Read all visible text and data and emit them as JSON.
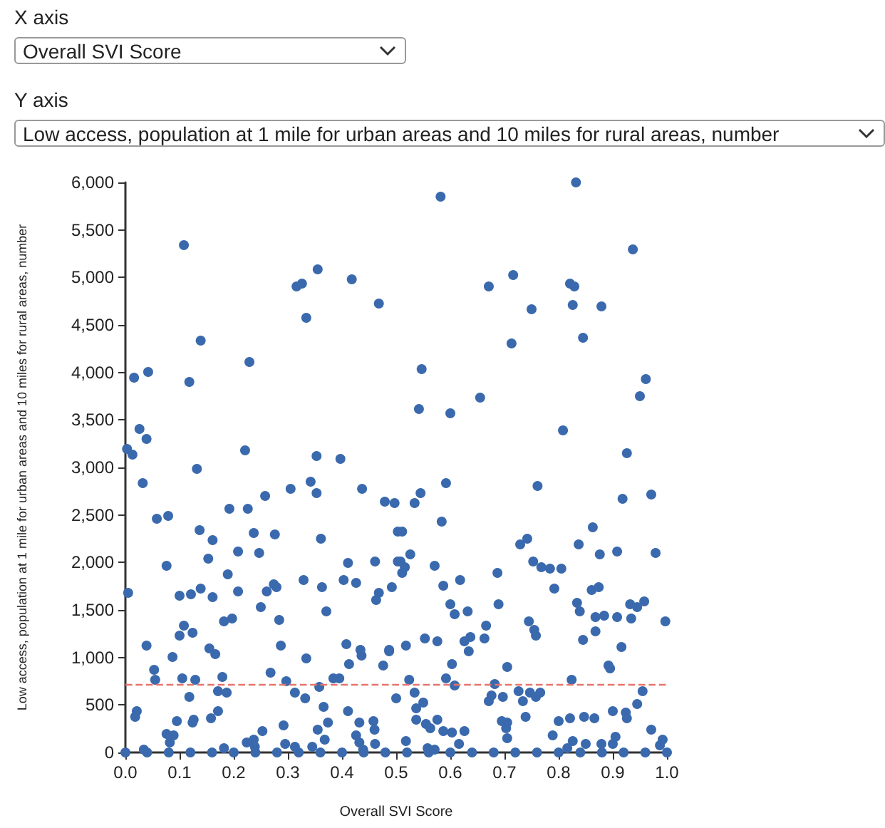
{
  "chart_data": {
    "type": "scatter",
    "xlabel": "Overall SVI Score",
    "ylabel": "Low access, population at 1 mile for urban areas and 10 miles for rural areas, number",
    "annotations": [
      "X axis",
      "Y axis"
    ],
    "xlim": [
      0,
      1
    ],
    "xticks": [
      {
        "value": 0,
        "label": "0.0"
      },
      0.1,
      0.2,
      0.3,
      0.4,
      0.5,
      0.6,
      0.7,
      0.8,
      0.9,
      {
        "value": 1,
        "label": "1.0"
      }
    ],
    "ylim": [
      0,
      6000
    ],
    "yticks": [
      0,
      500,
      {
        "value": 1000,
        "label": "1,000"
      },
      {
        "value": 1500,
        "label": "1,500"
      },
      {
        "value": 2000,
        "label": "2,000"
      },
      {
        "value": 2500,
        "label": "2,500"
      },
      {
        "value": 3000,
        "label": "3,000"
      },
      {
        "value": 3500,
        "label": "3,500"
      },
      {
        "value": 4000,
        "label": "4,000"
      },
      {
        "value": 4500,
        "label": "4,500"
      },
      {
        "value": 5000,
        "label": "5,000"
      },
      {
        "value": 5500,
        "label": "5,500"
      },
      {
        "value": 6000,
        "label": "6,000"
      }
    ],
    "grid": false,
    "marker": "circle",
    "ref_lines": [
      {
        "axis": "y",
        "value": 720,
        "color": "#e8736c",
        "line_style": "dashed"
      }
    ],
    "series": [
      {
        "color": "#3a6aad",
        "x": [
          0.108,
          0.139,
          0.229,
          0.016,
          0.042,
          0.118,
          0.026,
          0.039,
          0.003,
          0.013,
          0.221,
          0.353,
          0.397,
          0.316,
          0.326,
          0.355,
          0.418,
          0.468,
          0.334,
          0.832,
          0.582,
          0.937,
          0.716,
          0.671,
          0.821,
          0.829,
          0.75,
          0.826,
          0.879,
          0.713,
          0.845,
          0.547,
          0.961,
          0.95,
          0.542,
          0.6,
          0.655,
          0.808,
          0.926,
          0.132,
          0.032,
          0.058,
          0.079,
          0.137,
          0.161,
          0.192,
          0.226,
          0.258,
          0.237,
          0.208,
          0.247,
          0.276,
          0.305,
          0.342,
          0.353,
          0.361,
          0.437,
          0.479,
          0.497,
          0.503,
          0.076,
          0.005,
          0.153,
          0.189,
          0.208,
          0.1,
          0.121,
          0.139,
          0.161,
          0.261,
          0.25,
          0.274,
          0.279,
          0.329,
          0.363,
          0.371,
          0.403,
          0.411,
          0.426,
          0.461,
          0.503,
          0.468,
          0.463,
          0.492,
          0.182,
          0.197,
          0.284,
          0.108,
          0.1,
          0.124,
          0.039,
          0.155,
          0.166,
          0.087,
          0.287,
          0.334,
          0.408,
          0.434,
          0.436,
          0.413,
          0.476,
          0.487,
          0.053,
          0.055,
          0.105,
          0.129,
          0.179,
          0.268,
          0.297,
          0.384,
          0.395,
          0.358,
          0.171,
          0.187,
          0.118,
          0.313,
          0.332,
          0.5,
          0.366,
          0.021,
          0.018,
          0.171,
          0.158,
          0.253,
          0.095,
          0.126,
          0.124,
          0.076,
          0.089,
          0.082,
          0.292,
          0.355,
          0.368,
          0.374,
          0.411,
          0.432,
          0.458,
          0.46,
          0.426,
          0.432,
          0.461,
          0.034,
          0.182,
          0.224,
          0.237,
          0.239,
          0.295,
          0.313,
          0.345,
          0.439,
          0.592,
          0.761,
          0.918,
          0.971,
          0.534,
          0.545,
          0.584,
          0.511,
          0.863,
          0.729,
          0.742,
          0.837,
          0.908,
          0.979,
          0.876,
          0.526,
          0.508,
          0.516,
          0.511,
          0.571,
          0.753,
          0.768,
          0.784,
          0.805,
          0.687,
          0.618,
          0.587,
          0.792,
          0.861,
          0.874,
          0.6,
          0.608,
          0.632,
          0.689,
          0.834,
          0.839,
          0.868,
          0.884,
          0.908,
          0.932,
          0.945,
          0.958,
          0.934,
          0.997,
          0.745,
          0.755,
          0.758,
          0.868,
          0.845,
          0.916,
          0.666,
          0.663,
          0.626,
          0.637,
          0.634,
          0.576,
          0.553,
          0.518,
          0.487,
          0.603,
          0.705,
          0.892,
          0.895,
          0.592,
          0.608,
          0.524,
          0.682,
          0.824,
          0.955,
          0.945,
          0.534,
          0.55,
          0.537,
          0.671,
          0.676,
          0.697,
          0.726,
          0.734,
          0.747,
          0.758,
          0.766,
          0.739,
          0.9,
          0.924,
          0.926,
          0.537,
          0.555,
          0.563,
          0.576,
          0.587,
          0.603,
          0.626,
          0.695,
          0.705,
          0.703,
          0.705,
          0.8,
          0.821,
          0.847,
          0.866,
          0.789,
          0.905,
          0.971,
          0.616,
          0.518,
          0.826,
          0.85,
          0.879,
          0.9,
          0.992,
          0.987,
          0.558,
          0.571,
          0.816,
          0.0,
          0.04,
          0.08,
          0.12,
          0.16,
          0.2,
          0.24,
          0.28,
          0.32,
          0.36,
          0.4,
          0.44,
          0.48,
          0.52,
          0.56,
          0.6,
          0.64,
          0.68,
          0.72,
          0.76,
          0.8,
          0.84,
          0.88,
          0.92,
          0.96,
          1.0
        ],
        "values": [
          5340,
          4335,
          4110,
          3945,
          4005,
          3900,
          3405,
          3300,
          3195,
          3135,
          3180,
          3120,
          3090,
          4905,
          4935,
          5085,
          4980,
          4725,
          4575,
          6000,
          5850,
          5295,
          5025,
          4905,
          4935,
          4905,
          4665,
          4710,
          4695,
          4305,
          4365,
          4035,
          3930,
          3750,
          3615,
          3570,
          3735,
          3390,
          3150,
          2985,
          2835,
          2460,
          2490,
          2340,
          2235,
          2565,
          2565,
          2700,
          2310,
          2115,
          2100,
          2295,
          2775,
          2850,
          2730,
          2250,
          2775,
          2640,
          2625,
          2325,
          1965,
          1680,
          2040,
          1875,
          1695,
          1650,
          1665,
          1725,
          1635,
          1695,
          1530,
          1770,
          1740,
          1815,
          1740,
          1485,
          1815,
          1995,
          1785,
          2010,
          2010,
          1680,
          1605,
          1740,
          1380,
          1410,
          1395,
          1335,
          1230,
          1260,
          1125,
          1095,
          1035,
          1005,
          1125,
          990,
          1140,
          1080,
          1020,
          930,
          915,
          1080,
          870,
          765,
          780,
          765,
          795,
          840,
          750,
          780,
          780,
          690,
          645,
          630,
          585,
          630,
          570,
          570,
          480,
          435,
          375,
          435,
          360,
          225,
          330,
          345,
          315,
          195,
          180,
          105,
          285,
          240,
          135,
          315,
          435,
          315,
          330,
          240,
          180,
          105,
          90,
          30,
          45,
          105,
          135,
          60,
          90,
          60,
          60,
          30,
          2835,
          2805,
          2670,
          2715,
          2625,
          2730,
          2430,
          2325,
          2370,
          2190,
          2250,
          2190,
          2115,
          2100,
          2085,
          2085,
          2010,
          1950,
          1890,
          1965,
          2010,
          1950,
          1935,
          1935,
          1890,
          1815,
          1755,
          1725,
          1710,
          1740,
          1560,
          1455,
          1485,
          1560,
          1575,
          1485,
          1425,
          1440,
          1425,
          1560,
          1530,
          1590,
          1410,
          1380,
          1380,
          1290,
          1230,
          1275,
          1185,
          1110,
          1335,
          1200,
          1170,
          1215,
          1065,
          1170,
          1200,
          1125,
          1065,
          930,
          900,
          915,
          885,
          780,
          705,
          765,
          720,
          765,
          645,
          510,
          630,
          525,
          465,
          540,
          600,
          585,
          645,
          540,
          630,
          585,
          630,
          375,
          435,
          420,
          360,
          345,
          300,
          255,
          345,
          225,
          210,
          225,
          330,
          315,
          255,
          150,
          330,
          360,
          375,
          360,
          180,
          165,
          240,
          90,
          120,
          120,
          90,
          90,
          90,
          135,
          75,
          45,
          30,
          45,
          0,
          0,
          0,
          0,
          0,
          0,
          0,
          0,
          0,
          0,
          0,
          0,
          0,
          0,
          0,
          0,
          0,
          0,
          0,
          0,
          0,
          0,
          0,
          0,
          0,
          0
        ]
      }
    ]
  }
}
